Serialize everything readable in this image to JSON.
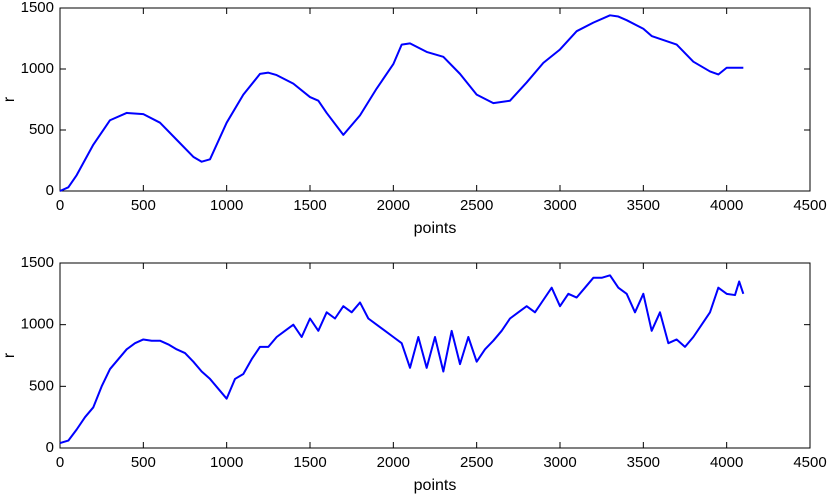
{
  "chart_data": [
    {
      "type": "line",
      "xlabel": "points",
      "ylabel": "r",
      "color": "#0000ff",
      "x": [
        0,
        50,
        100,
        200,
        300,
        400,
        500,
        600,
        700,
        800,
        850,
        900,
        1000,
        1100,
        1200,
        1250,
        1300,
        1400,
        1500,
        1550,
        1600,
        1700,
        1800,
        1900,
        2000,
        2050,
        2100,
        2200,
        2300,
        2400,
        2500,
        2600,
        2700,
        2800,
        2900,
        3000,
        3100,
        3200,
        3300,
        3350,
        3400,
        3500,
        3550,
        3700,
        3800,
        3900,
        3950,
        4000,
        4100
      ],
      "values": [
        0,
        30,
        130,
        380,
        580,
        640,
        630,
        560,
        420,
        280,
        240,
        260,
        560,
        790,
        960,
        970,
        950,
        880,
        770,
        740,
        640,
        460,
        620,
        840,
        1040,
        1200,
        1210,
        1140,
        1100,
        960,
        790,
        720,
        740,
        890,
        1050,
        1160,
        1310,
        1380,
        1440,
        1430,
        1400,
        1330,
        1270,
        1200,
        1060,
        980,
        955,
        1010,
        1010
      ],
      "xlim": [
        0,
        4500
      ],
      "ylim": [
        0,
        1500
      ],
      "xticks": [
        0,
        500,
        1000,
        1500,
        2000,
        2500,
        3000,
        3500,
        4000,
        4500
      ],
      "yticks": [
        0,
        500,
        1000,
        1500
      ]
    },
    {
      "type": "line",
      "xlabel": "points",
      "ylabel": "r",
      "color": "#0000ff",
      "x": [
        0,
        50,
        100,
        150,
        200,
        250,
        300,
        350,
        400,
        450,
        500,
        550,
        600,
        650,
        700,
        750,
        800,
        850,
        900,
        950,
        1000,
        1050,
        1100,
        1150,
        1200,
        1250,
        1300,
        1350,
        1400,
        1450,
        1500,
        1550,
        1600,
        1650,
        1700,
        1750,
        1800,
        1850,
        1900,
        1950,
        2000,
        2050,
        2100,
        2150,
        2200,
        2250,
        2300,
        2350,
        2400,
        2450,
        2500,
        2550,
        2600,
        2650,
        2700,
        2750,
        2800,
        2850,
        2900,
        2950,
        3000,
        3050,
        3100,
        3150,
        3200,
        3250,
        3300,
        3350,
        3400,
        3450,
        3500,
        3550,
        3600,
        3650,
        3700,
        3750,
        3800,
        3850,
        3900,
        3950,
        4000,
        4050,
        4075,
        4100
      ],
      "values": [
        40,
        60,
        150,
        250,
        330,
        500,
        640,
        720,
        800,
        850,
        880,
        870,
        870,
        840,
        800,
        770,
        700,
        620,
        560,
        480,
        400,
        560,
        600,
        720,
        820,
        820,
        900,
        950,
        1000,
        900,
        1050,
        950,
        1100,
        1050,
        1150,
        1100,
        1180,
        1050,
        1000,
        950,
        900,
        850,
        650,
        900,
        650,
        900,
        620,
        950,
        680,
        900,
        700,
        800,
        870,
        950,
        1050,
        1100,
        1150,
        1100,
        1200,
        1300,
        1150,
        1250,
        1220,
        1300,
        1380,
        1380,
        1400,
        1300,
        1250,
        1100,
        1250,
        950,
        1100,
        850,
        880,
        820,
        900,
        1000,
        1100,
        1300,
        1250,
        1240,
        1350,
        1250
      ],
      "xlim": [
        0,
        4500
      ],
      "ylim": [
        0,
        1500
      ],
      "xticks": [
        0,
        500,
        1000,
        1500,
        2000,
        2500,
        3000,
        3500,
        4000,
        4500
      ],
      "yticks": [
        0,
        500,
        1000,
        1500
      ]
    }
  ]
}
